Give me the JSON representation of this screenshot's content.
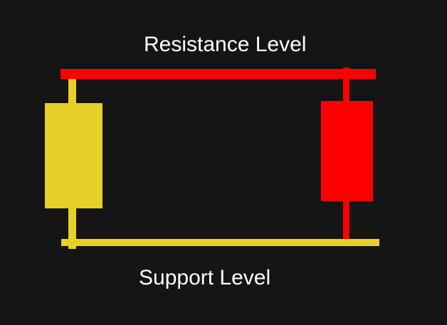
{
  "labels": {
    "resistance": "Resistance Level",
    "support": "Support Level"
  },
  "colors": {
    "background": "#151515",
    "resistance_line": "#ff0000",
    "support_line": "#e6d027",
    "bullish_candle": "#e6d027",
    "bearish_candle": "#ff0000",
    "text": "#ffffff"
  },
  "candles": [
    {
      "name": "left-candle",
      "color": "yellow"
    },
    {
      "name": "right-candle",
      "color": "red"
    }
  ]
}
